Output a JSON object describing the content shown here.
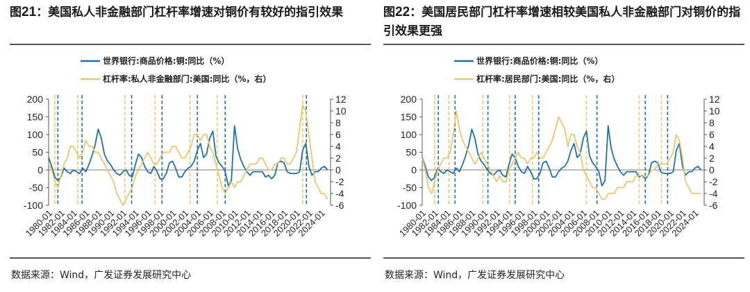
{
  "figures": [
    {
      "title_prefix": "图",
      "title_num": "21",
      "title_text": "：美国私人非金融部门杠杆率增速对铜价有较好的指引效果",
      "source": "数据来源：Wind，广发证券发展研究中心"
    },
    {
      "title_prefix": "图",
      "title_num": "22",
      "title_text": "：美国居民部门杠杆率增速相较美国私人非金融部门对铜价的指引效果更强",
      "source": "数据来源：Wind，广发证券发展研究中心"
    }
  ],
  "chart_data": [
    {
      "type": "line",
      "title": "美国私人非金融部门杠杆率增速对铜价有较好的指引效果",
      "x_start": 1980.0,
      "x_end": 2025.5,
      "x_tick_labels": [
        "1980-01",
        "1982-01",
        "1984-01",
        "1986-01",
        "1988-01",
        "1990-01",
        "1992-01",
        "1994-01",
        "1996-01",
        "1998-01",
        "2000-01",
        "2002-01",
        "2004-01",
        "2006-01",
        "2008-01",
        "2010-01",
        "2012-01",
        "2014-01",
        "2016-01",
        "2018-01",
        "2020-01",
        "2022-01",
        "2024-01"
      ],
      "ylim_left": [
        -100,
        200
      ],
      "yticks_left": [
        "200",
        "150",
        "100",
        "50",
        "0",
        "-50",
        "-100"
      ],
      "ylim_right": [
        -6,
        12
      ],
      "yticks_right": [
        "12",
        "10",
        "8",
        "6",
        "4",
        "2",
        "0",
        "-2",
        "-4",
        "-6"
      ],
      "series": [
        {
          "name": "世界银行:商品价格:铜:同比（%）",
          "axis": "left",
          "color": "#1f6fad",
          "x": [
            1980.0,
            1980.5,
            1981.0,
            1981.5,
            1982.0,
            1982.5,
            1983.0,
            1983.5,
            1984.0,
            1984.5,
            1985.0,
            1985.5,
            1986.0,
            1986.5,
            1987.0,
            1987.5,
            1988.0,
            1988.5,
            1989.0,
            1989.5,
            1990.0,
            1990.5,
            1991.0,
            1991.5,
            1992.0,
            1992.5,
            1993.0,
            1993.5,
            1994.0,
            1994.5,
            1995.0,
            1995.5,
            1996.0,
            1996.5,
            1997.0,
            1997.5,
            1998.0,
            1998.5,
            1999.0,
            1999.5,
            2000.0,
            2000.5,
            2001.0,
            2001.5,
            2002.0,
            2002.5,
            2003.0,
            2003.5,
            2004.0,
            2004.5,
            2005.0,
            2005.5,
            2006.0,
            2006.5,
            2007.0,
            2007.5,
            2008.0,
            2008.5,
            2009.0,
            2009.5,
            2010.0,
            2010.5,
            2011.0,
            2011.5,
            2012.0,
            2012.5,
            2013.0,
            2013.5,
            2014.0,
            2014.5,
            2015.0,
            2015.5,
            2016.0,
            2016.5,
            2017.0,
            2017.5,
            2018.0,
            2018.5,
            2019.0,
            2019.5,
            2020.0,
            2020.5,
            2021.0,
            2021.5,
            2022.0,
            2022.5,
            2023.0,
            2023.5,
            2024.0,
            2024.5,
            2025.0
          ],
          "values": [
            35,
            10,
            -20,
            -30,
            -20,
            5,
            -5,
            -10,
            0,
            -5,
            -10,
            5,
            -5,
            15,
            40,
            70,
            115,
            90,
            45,
            25,
            15,
            0,
            -10,
            -15,
            -5,
            0,
            -15,
            -20,
            15,
            45,
            35,
            10,
            -5,
            -10,
            10,
            -5,
            -25,
            -25,
            -10,
            20,
            25,
            5,
            -20,
            -20,
            -5,
            5,
            10,
            25,
            55,
            75,
            35,
            45,
            90,
            110,
            40,
            20,
            10,
            -5,
            -45,
            -30,
            125,
            60,
            30,
            10,
            -5,
            -15,
            -5,
            -5,
            -5,
            -5,
            -20,
            -15,
            -25,
            -15,
            20,
            25,
            20,
            -5,
            -10,
            -10,
            -10,
            -5,
            55,
            75,
            10,
            -15,
            -5,
            -5,
            5,
            10,
            0
          ]
        },
        {
          "name": "杠杆率:私人非金融部门:美国:同比（%，右）",
          "axis": "right",
          "color": "#e6c86a",
          "x": [
            1980.0,
            1980.5,
            1981.0,
            1981.5,
            1982.0,
            1982.5,
            1983.0,
            1983.5,
            1984.0,
            1984.5,
            1985.0,
            1985.5,
            1986.0,
            1986.5,
            1987.0,
            1987.5,
            1988.0,
            1988.5,
            1989.0,
            1989.5,
            1990.0,
            1990.5,
            1991.0,
            1991.5,
            1992.0,
            1992.5,
            1993.0,
            1993.5,
            1994.0,
            1994.5,
            1995.0,
            1995.5,
            1996.0,
            1996.5,
            1997.0,
            1997.5,
            1998.0,
            1998.5,
            1999.0,
            1999.5,
            2000.0,
            2000.5,
            2001.0,
            2001.5,
            2002.0,
            2002.5,
            2003.0,
            2003.5,
            2004.0,
            2004.5,
            2005.0,
            2005.5,
            2006.0,
            2006.5,
            2007.0,
            2007.5,
            2008.0,
            2008.5,
            2009.0,
            2009.5,
            2010.0,
            2010.5,
            2011.0,
            2011.5,
            2012.0,
            2012.5,
            2013.0,
            2013.5,
            2014.0,
            2014.5,
            2015.0,
            2015.5,
            2016.0,
            2016.5,
            2017.0,
            2017.5,
            2018.0,
            2018.5,
            2019.0,
            2019.5,
            2020.0,
            2020.5,
            2021.0,
            2021.5,
            2022.0,
            2022.5,
            2023.0,
            2023.5,
            2024.0,
            2024.5,
            2025.0
          ],
          "values": [
            1,
            0,
            -2,
            -3,
            -1,
            1,
            2,
            4,
            4,
            3,
            2,
            3,
            5,
            4,
            4,
            3,
            3,
            2,
            1,
            0,
            -1,
            -2,
            -4,
            -5,
            -6,
            -5,
            -4,
            -3,
            -1,
            0,
            1,
            2,
            3,
            2,
            1,
            1,
            2,
            3,
            3,
            3,
            4,
            4,
            3,
            2,
            2,
            3,
            4,
            6,
            6,
            5,
            6,
            6,
            4,
            3,
            1,
            -1,
            -3,
            -4,
            -3,
            -2,
            -3,
            -2,
            -2,
            -1,
            0,
            1,
            1,
            1,
            2,
            2,
            1,
            0,
            0,
            1,
            1,
            2,
            2,
            1,
            1,
            2,
            3,
            7,
            11,
            10,
            6,
            2,
            -2,
            -3,
            -4,
            -4,
            -5
          ]
        }
      ],
      "vlines": [
        {
          "x": 1981.0,
          "color": "#e6c86a"
        },
        {
          "x": 1981.5,
          "color": "#1f6fad"
        },
        {
          "x": 1984.7,
          "color": "#e6c86a"
        },
        {
          "x": 1985.4,
          "color": "#1f6fad"
        },
        {
          "x": 1992.3,
          "color": "#e6c86a"
        },
        {
          "x": 1993.4,
          "color": "#1f6fad"
        },
        {
          "x": 1997.2,
          "color": "#e6c86a"
        },
        {
          "x": 1998.3,
          "color": "#1f6fad"
        },
        {
          "x": 2002.8,
          "color": "#e6c86a"
        },
        {
          "x": 2004.0,
          "color": "#1f6fad"
        },
        {
          "x": 2007.2,
          "color": "#e6c86a"
        },
        {
          "x": 2008.5,
          "color": "#1f6fad"
        },
        {
          "x": 2021.0,
          "color": "#e6c86a"
        },
        {
          "x": 2021.6,
          "color": "#1f6fad"
        }
      ]
    },
    {
      "type": "line",
      "title": "美国居民部门杠杆率增速相较美国私人非金融部门对铜价的指引效果更强",
      "x_start": 1980.0,
      "x_end": 2025.5,
      "x_tick_labels": [
        "1980-01",
        "1982-01",
        "1984-01",
        "1986-01",
        "1988-01",
        "1990-01",
        "1992-01",
        "1994-01",
        "1996-01",
        "1998-01",
        "2000-01",
        "2002-01",
        "2004-01",
        "2006-01",
        "2008-01",
        "2010-01",
        "2012-01",
        "2014-01",
        "2016-01",
        "2018-01",
        "2020-01",
        "2022-01",
        "2024-01"
      ],
      "ylim_left": [
        -100,
        200
      ],
      "yticks_left": [
        "200",
        "150",
        "100",
        "50",
        "0",
        "-50",
        "-100"
      ],
      "ylim_right": [
        -6,
        12
      ],
      "yticks_right": [
        "12",
        "10",
        "8",
        "6",
        "4",
        "2",
        "0",
        "-2",
        "-4",
        "-6"
      ],
      "series": [
        {
          "name": "世界银行:商品价格:铜:同比（%）",
          "axis": "left",
          "color": "#1f6fad",
          "x": [
            1980.0,
            1980.5,
            1981.0,
            1981.5,
            1982.0,
            1982.5,
            1983.0,
            1983.5,
            1984.0,
            1984.5,
            1985.0,
            1985.5,
            1986.0,
            1986.5,
            1987.0,
            1987.5,
            1988.0,
            1988.5,
            1989.0,
            1989.5,
            1990.0,
            1990.5,
            1991.0,
            1991.5,
            1992.0,
            1992.5,
            1993.0,
            1993.5,
            1994.0,
            1994.5,
            1995.0,
            1995.5,
            1996.0,
            1996.5,
            1997.0,
            1997.5,
            1998.0,
            1998.5,
            1999.0,
            1999.5,
            2000.0,
            2000.5,
            2001.0,
            2001.5,
            2002.0,
            2002.5,
            2003.0,
            2003.5,
            2004.0,
            2004.5,
            2005.0,
            2005.5,
            2006.0,
            2006.5,
            2007.0,
            2007.5,
            2008.0,
            2008.5,
            2009.0,
            2009.5,
            2010.0,
            2010.5,
            2011.0,
            2011.5,
            2012.0,
            2012.5,
            2013.0,
            2013.5,
            2014.0,
            2014.5,
            2015.0,
            2015.5,
            2016.0,
            2016.5,
            2017.0,
            2017.5,
            2018.0,
            2018.5,
            2019.0,
            2019.5,
            2020.0,
            2020.5,
            2021.0,
            2021.5,
            2022.0,
            2022.5,
            2023.0,
            2023.5,
            2024.0,
            2024.5,
            2025.0
          ],
          "values": [
            35,
            10,
            -20,
            -30,
            -20,
            5,
            -5,
            -10,
            0,
            -5,
            -10,
            5,
            -5,
            15,
            40,
            70,
            115,
            90,
            45,
            25,
            15,
            0,
            -10,
            -15,
            -5,
            0,
            -15,
            -20,
            15,
            45,
            35,
            10,
            -5,
            -10,
            10,
            -5,
            -25,
            -25,
            -10,
            20,
            25,
            5,
            -20,
            -20,
            -5,
            5,
            10,
            25,
            55,
            75,
            35,
            45,
            90,
            110,
            40,
            20,
            10,
            -5,
            -45,
            -30,
            125,
            60,
            30,
            10,
            -5,
            -15,
            -5,
            -5,
            -5,
            -5,
            -20,
            -15,
            -25,
            -15,
            20,
            25,
            20,
            -5,
            -10,
            -10,
            -10,
            -5,
            55,
            75,
            10,
            -15,
            -5,
            -5,
            5,
            10,
            0
          ]
        },
        {
          "name": "杠杆率:居民部门:美国:同比（%，右）",
          "axis": "right",
          "color": "#e6c86a",
          "x": [
            1980.0,
            1980.5,
            1981.0,
            1981.5,
            1982.0,
            1982.5,
            1983.0,
            1983.5,
            1984.0,
            1984.5,
            1985.0,
            1985.5,
            1986.0,
            1986.5,
            1987.0,
            1987.5,
            1988.0,
            1988.5,
            1989.0,
            1989.5,
            1990.0,
            1990.5,
            1991.0,
            1991.5,
            1992.0,
            1992.5,
            1993.0,
            1993.5,
            1994.0,
            1994.5,
            1995.0,
            1995.5,
            1996.0,
            1996.5,
            1997.0,
            1997.5,
            1998.0,
            1998.5,
            1999.0,
            1999.5,
            2000.0,
            2000.5,
            2001.0,
            2001.5,
            2002.0,
            2002.5,
            2003.0,
            2003.5,
            2004.0,
            2004.5,
            2005.0,
            2005.5,
            2006.0,
            2006.5,
            2007.0,
            2007.5,
            2008.0,
            2008.5,
            2009.0,
            2009.5,
            2010.0,
            2010.5,
            2011.0,
            2011.5,
            2012.0,
            2012.5,
            2013.0,
            2013.5,
            2014.0,
            2014.5,
            2015.0,
            2015.5,
            2016.0,
            2016.5,
            2017.0,
            2017.5,
            2018.0,
            2018.5,
            2019.0,
            2019.5,
            2020.0,
            2020.5,
            2021.0,
            2021.5,
            2022.0,
            2022.5,
            2023.0,
            2023.5,
            2024.0,
            2024.5,
            2025.0
          ],
          "values": [
            2,
            0,
            -3,
            -4,
            -2,
            0,
            1,
            2,
            2,
            3,
            6,
            10,
            7,
            5,
            4,
            3,
            2,
            1,
            2,
            3,
            2,
            1,
            0,
            -1,
            -2,
            -1,
            -2,
            -2,
            0,
            1,
            2,
            3,
            2,
            2,
            1,
            2,
            2,
            3,
            2,
            2,
            3,
            4,
            5,
            7,
            9,
            8,
            7,
            4,
            6,
            6,
            4,
            3,
            0,
            -1,
            -2,
            -3,
            -3,
            -4,
            -5,
            -5,
            -4,
            -4,
            -4,
            -3,
            -3,
            -3,
            -2,
            -2,
            -2,
            -1,
            -1,
            -1,
            -1,
            -1,
            0,
            0,
            1,
            1,
            1,
            1,
            2,
            3,
            6,
            5,
            2,
            -2,
            -3,
            -4,
            -4,
            -4,
            -4
          ]
        }
      ],
      "vlines": [
        {
          "x": 1982.0,
          "color": "#e6c86a"
        },
        {
          "x": 1982.6,
          "color": "#1f6fad"
        },
        {
          "x": 1984.3,
          "color": "#e6c86a"
        },
        {
          "x": 1985.3,
          "color": "#1f6fad"
        },
        {
          "x": 1989.8,
          "color": "#e6c86a"
        },
        {
          "x": 1990.6,
          "color": "#1f6fad"
        },
        {
          "x": 1994.1,
          "color": "#e6c86a"
        },
        {
          "x": 1995.0,
          "color": "#1f6fad"
        },
        {
          "x": 1997.8,
          "color": "#e6c86a"
        },
        {
          "x": 1998.8,
          "color": "#1f6fad"
        },
        {
          "x": 2006.5,
          "color": "#e6c86a"
        },
        {
          "x": 2008.2,
          "color": "#1f6fad"
        },
        {
          "x": 2015.0,
          "color": "#e6c86a"
        },
        {
          "x": 2016.0,
          "color": "#1f6fad"
        },
        {
          "x": 2018.6,
          "color": "#e6c86a"
        },
        {
          "x": 2019.6,
          "color": "#1f6fad"
        }
      ]
    }
  ]
}
